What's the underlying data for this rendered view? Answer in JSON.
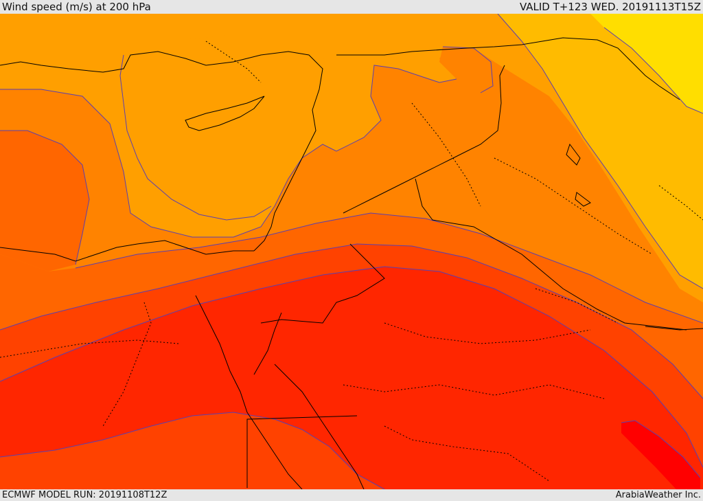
{
  "header": {
    "title": "Wind speed (m/s) at 200 hPa",
    "valid": "VALID T+123 WED. 20191113T15Z"
  },
  "footer": {
    "model_run": "ECMWF MODEL RUN: 20191108T12Z",
    "credit": "ArabiaWeather Inc."
  },
  "colors": {
    "level_1": "#ffde00",
    "level_2": "#ffbb00",
    "level_3": "#ff9f00",
    "level_4": "#ff8300",
    "level_5": "#ff6600",
    "level_6": "#ff4200",
    "level_7": "#ff2600",
    "level_8": "#ff0000",
    "contour": "#5a3fb0",
    "border": "#000000"
  }
}
